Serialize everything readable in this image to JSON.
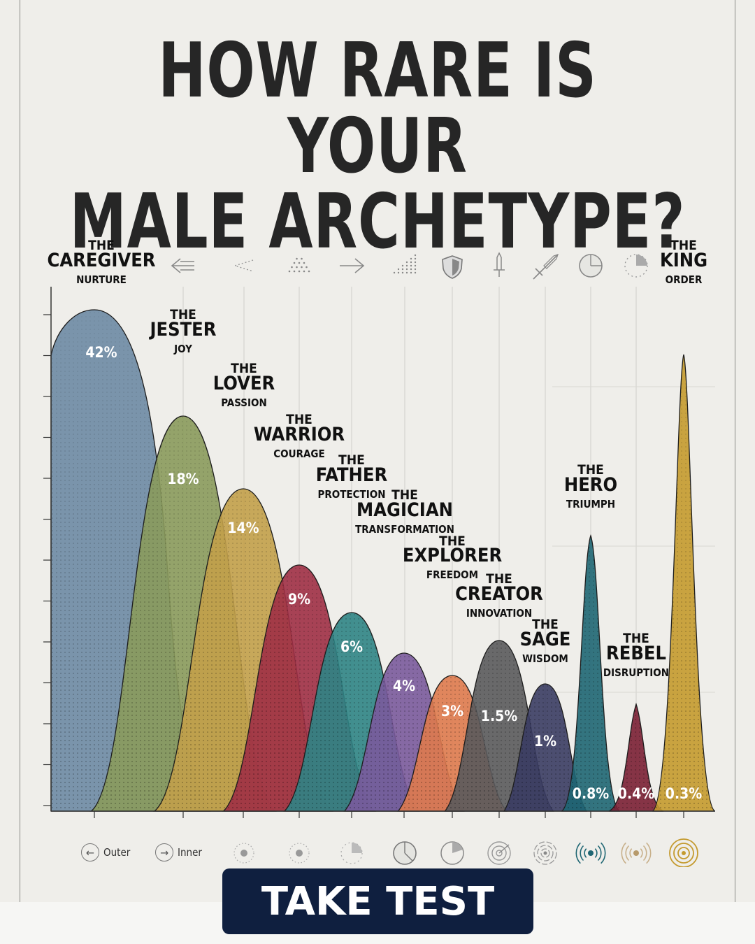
{
  "title": {
    "line1": "HOW RARE IS YOUR",
    "line2": "MALE ARCHETYPE?"
  },
  "button": {
    "label": "TAKE TEST"
  },
  "legend": {
    "outer": "Outer",
    "inner": "Inner"
  },
  "chart_data": {
    "type": "area",
    "title": "HOW RARE IS YOUR MALE ARCHETYPE?",
    "grid": true,
    "series": [
      {
        "the": "THE",
        "name": "CAREGIVER",
        "trait": "NURTURE",
        "value": 42,
        "label": "42%",
        "color": "#6d8aa4"
      },
      {
        "the": "THE",
        "name": "JESTER",
        "trait": "JOY",
        "value": 18,
        "label": "18%",
        "color": "#8a9a5c"
      },
      {
        "the": "THE",
        "name": "LOVER",
        "trait": "PASSION",
        "value": 14,
        "label": "14%",
        "color": "#c2a04a"
      },
      {
        "the": "THE",
        "name": "WARRIOR",
        "trait": "COURAGE",
        "value": 9,
        "label": "9%",
        "color": "#9e2f45"
      },
      {
        "the": "THE",
        "name": "FATHER",
        "trait": "PROTECTION",
        "value": 6,
        "label": "6%",
        "color": "#2f8485"
      },
      {
        "the": "THE",
        "name": "MAGICIAN",
        "trait": "TRANSFORMATION",
        "value": 4,
        "label": "4%",
        "color": "#7a5a9c"
      },
      {
        "the": "THE",
        "name": "EXPLORER",
        "trait": "FREEDOM",
        "value": 3,
        "label": "3%",
        "color": "#de7a4e"
      },
      {
        "the": "THE",
        "name": "CREATOR",
        "trait": "INNOVATION",
        "value": 1.5,
        "label": "1.5%",
        "color": "#5a5a5c"
      },
      {
        "the": "THE",
        "name": "SAGE",
        "trait": "WISDOM",
        "value": 1,
        "label": "1%",
        "color": "#3a3c63"
      },
      {
        "the": "THE",
        "name": "HERO",
        "trait": "TRIUMPH",
        "value": 0.8,
        "label": "0.8%",
        "color": "#1e6673"
      },
      {
        "the": "THE",
        "name": "REBEL",
        "trait": "DISRUPTION",
        "value": 0.4,
        "label": "0.4%",
        "color": "#7a1f34"
      },
      {
        "the": "THE",
        "name": "KING",
        "trait": "ORDER",
        "value": 0.3,
        "label": "0.3%",
        "color": "#c49a2e"
      }
    ],
    "top_icons": [
      "arrow-left-icon",
      "chevron-dots-icon",
      "dot-triangle-icon",
      "arrow-right-icon",
      "dot-ramp-icon",
      "shield-icon",
      "dagger-icon",
      "sword-icon",
      "pie-quarter-icon",
      "dotted-pie-icon"
    ],
    "bottom_icons": [
      "dotted-circle-icon",
      "dotted-circle-icon",
      "quarter-circle-icon",
      "half-circle-icon",
      "pie-slice-icon",
      "target-icon",
      "spiral-icon",
      "signal-waves-icon",
      "signal-waves-icon",
      "concentric-rings-icon"
    ]
  }
}
